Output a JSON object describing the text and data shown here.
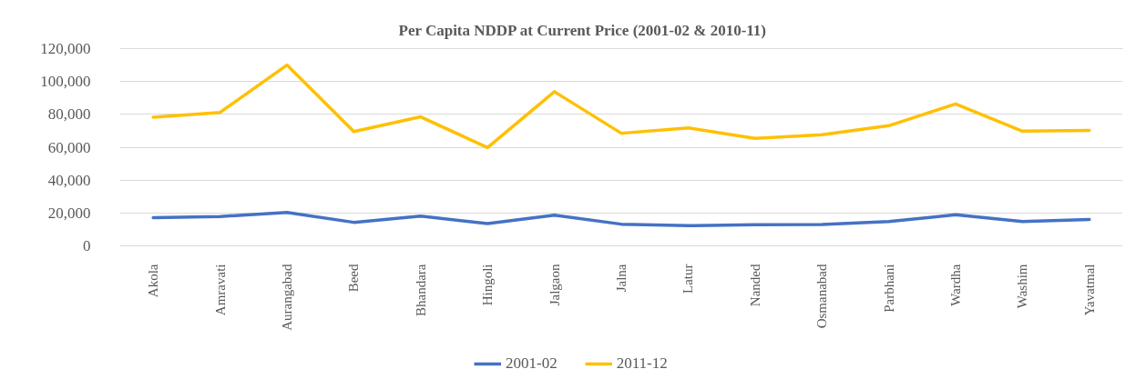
{
  "chart_data": {
    "type": "line",
    "title": "Per Capita NDDP at Current Price (2001-02 & 2010-11)",
    "categories": [
      "Akola",
      "Amravati",
      "Aurangabad",
      "Beed",
      "Bhandara",
      "Hingoli",
      "Jalgaon",
      "Jalna",
      "Latur",
      "Nanded",
      "Osmanabad",
      "Parbhani",
      "Wardha",
      "Washim",
      "Yavatmal"
    ],
    "series": [
      {
        "name": "2001-02",
        "color": "#4472c4",
        "values": [
          17200,
          17900,
          20300,
          14300,
          18100,
          13500,
          18700,
          13200,
          12300,
          12800,
          13000,
          14800,
          18900,
          14800,
          16100
        ]
      },
      {
        "name": "2011-12",
        "color": "#ffc000",
        "values": [
          78300,
          81200,
          110000,
          69500,
          78500,
          59800,
          93800,
          68500,
          71800,
          65400,
          67600,
          73100,
          86300,
          69800,
          70200
        ]
      }
    ],
    "ylim": [
      0,
      120000
    ],
    "yticks": [
      0,
      {
        "value": 20000,
        "label": "20,000"
      },
      {
        "value": 40000,
        "label": "40,000"
      },
      {
        "value": 60000,
        "label": "60,000"
      },
      {
        "value": 80000,
        "label": "80,000"
      },
      {
        "value": 100000,
        "label": "100,000"
      },
      {
        "value": 120000,
        "label": "120,000"
      }
    ],
    "grid": "y",
    "legend": "bottom",
    "line_style": "solid"
  }
}
